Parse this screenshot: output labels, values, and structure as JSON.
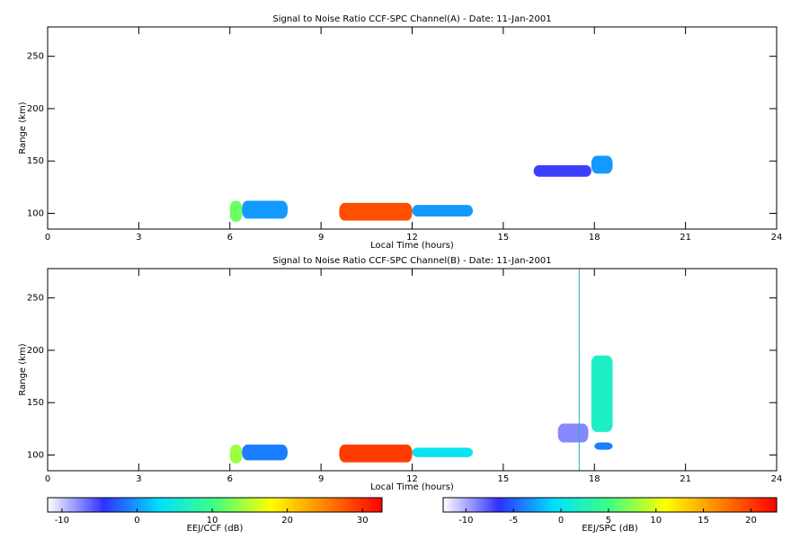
{
  "chart_data": [
    {
      "type": "heatmap",
      "title": "Signal to Noise Ratio CCF-SPC Channel(A) - Date: 11-Jan-2001",
      "xlabel": "Local Time (hours)",
      "ylabel": "Range (km)",
      "xlim": [
        0,
        24
      ],
      "xticks": [
        0,
        3,
        6,
        9,
        12,
        15,
        18,
        21,
        24
      ],
      "ylim": [
        85,
        278
      ],
      "yticks": [
        100,
        150,
        200,
        250
      ],
      "blobs": [
        {
          "x": [
            6.0,
            6.4
          ],
          "y": [
            92,
            112
          ],
          "value": 12
        },
        {
          "x": [
            6.4,
            7.9
          ],
          "y": [
            95,
            112
          ],
          "value": 0
        },
        {
          "x": [
            9.6,
            12.0
          ],
          "y": [
            93,
            110
          ],
          "value": 28
        },
        {
          "x": [
            12.0,
            14.0
          ],
          "y": [
            97,
            108
          ],
          "value": 0
        },
        {
          "x": [
            16.0,
            17.9
          ],
          "y": [
            135,
            146
          ],
          "value": -5
        },
        {
          "x": [
            17.9,
            18.6
          ],
          "y": [
            138,
            155
          ],
          "value": 0
        }
      ]
    },
    {
      "type": "heatmap",
      "title": "Signal to Noise Ratio CCF-SPC Channel(B) - Date: 11-Jan-2001",
      "xlabel": "Local Time (hours)",
      "ylabel": "Range (km)",
      "xlim": [
        0,
        24
      ],
      "xticks": [
        0,
        3,
        6,
        9,
        12,
        15,
        18,
        21,
        24
      ],
      "ylim": [
        85,
        278
      ],
      "yticks": [
        100,
        150,
        200,
        250
      ],
      "vline_x": 17.5,
      "vline_color": "#20b0c0",
      "blobs": [
        {
          "x": [
            6.0,
            6.4
          ],
          "y": [
            92,
            110
          ],
          "value": 8
        },
        {
          "x": [
            6.4,
            7.9
          ],
          "y": [
            95,
            110
          ],
          "value": -4
        },
        {
          "x": [
            9.6,
            12.0
          ],
          "y": [
            93,
            110
          ],
          "value": 20
        },
        {
          "x": [
            12.0,
            14.0
          ],
          "y": [
            98,
            107
          ],
          "value": 0
        },
        {
          "x": [
            16.8,
            17.8
          ],
          "y": [
            112,
            130
          ],
          "value": -9
        },
        {
          "x": [
            18.0,
            18.6
          ],
          "y": [
            105,
            112
          ],
          "value": -4
        },
        {
          "x": [
            17.9,
            18.6
          ],
          "y": [
            122,
            195
          ],
          "value": 2
        }
      ]
    },
    {
      "type": "colorbar",
      "label": "EEJ/CCF (dB)",
      "xlim": [
        -11.9,
        32.6
      ],
      "xticks": [
        -10,
        0,
        10,
        20,
        30
      ]
    },
    {
      "type": "colorbar",
      "label": "EEJ/SPC (dB)",
      "xlim": [
        -12.4,
        22.7
      ],
      "xticks": [
        -10,
        -5,
        0,
        5,
        10,
        15,
        20
      ]
    }
  ],
  "colormap": [
    "#ffffff",
    "#3030ff",
    "#00e0ff",
    "#40ff80",
    "#ffff00",
    "#ff8000",
    "#ff0000"
  ]
}
